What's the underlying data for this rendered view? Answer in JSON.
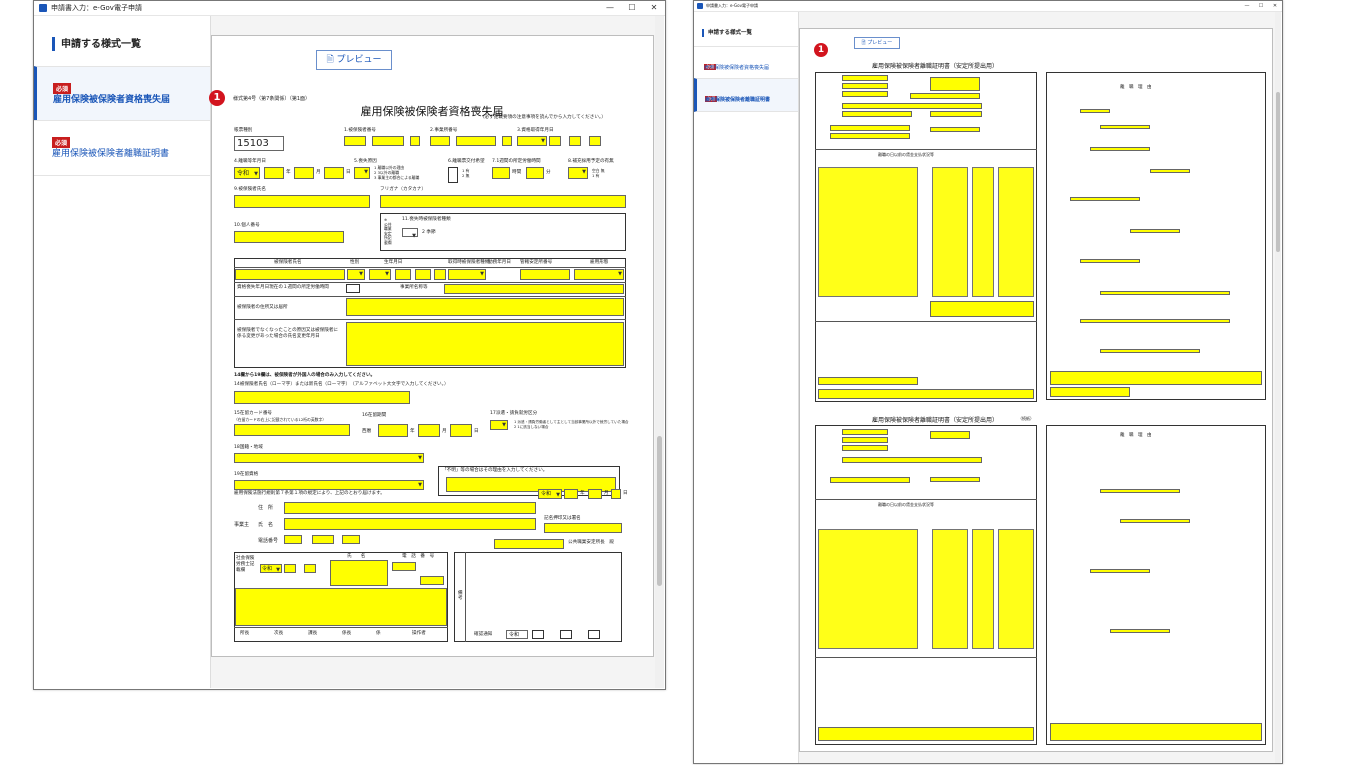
{
  "left_window": {
    "title": "申請書入力：e-Gov電子申請",
    "controls": {
      "minimize": "—",
      "maximize": "☐",
      "close": "✕"
    },
    "sidebar": {
      "header": "申請する様式一覧",
      "items": [
        {
          "badge": "必須",
          "label": "雇用保険被保険者資格喪失届",
          "active": true
        },
        {
          "badge": "必須",
          "label": "雇用保険被保険者離職証明書",
          "active": false
        }
      ]
    },
    "preview_label": "プレビュー",
    "marker": "1",
    "form": {
      "form_no": "様式第4号（第7条関係）（第1面）",
      "title": "雇用保険被保険者資格喪失届",
      "note": "（必ず記載要領の注意事項を読んでから入力してください。）",
      "labels": {
        "kind": "帳票種別",
        "insured_no": "1.被保険者番号",
        "office_no": "2.事業所番号",
        "acquired": "3.資格取得年月日",
        "lost_date": "4.離職等年月日",
        "reason": "5.喪失原因",
        "cert": "6.離職票交付希望",
        "hours": "7.1週間の所定労働時間",
        "replace": "8.補充採用予定の有無",
        "name": "9.被保険者氏名",
        "kana": "フリガナ（カタカナ）",
        "personal_no": "10.個人番号",
        "fixed_term": "11.喪失時被保険者種類",
        "changed_name": "被保険者氏名",
        "sex": "性別",
        "birth": "生年月日",
        "acq_kind": "取得時被保険者種類",
        "work_date": "勤務年月日",
        "pref_office": "管轄安定所番号",
        "employ": "雇用形態",
        "hours2": "資格喪失年月日現在の１週間の所定労働時間",
        "workplace": "事業所名称等",
        "address": "被保険者の住所又は居所",
        "other": "被保険者でなくなったことの原因又は被保険者に係る変更があった場合の氏名変更年月日",
        "foreign_head": "14欄から19欄は、被保険者が外国人の場合のみ入力してください。",
        "roman": "14被保険者氏名（ローマ字）または新氏名（ローマ字）　（アルファベット大文字で入力してください。）",
        "card": "15在留カード番号",
        "card_note": "（在留カードの右上に記載されている12桁の英数字）",
        "period": "16在留期間",
        "seireki": "西暦",
        "dispatch": "17派遣・請負就労区分",
        "nationality": "18国籍・地域",
        "status": "19在留資格",
        "reason_note": "「不明」等の場合はその理由を入力してください。",
        "declare": "雇用保険法施行規則第７条第１項の規定により、上記のとおり届けます。",
        "jusho": "住　所",
        "jigyonushi": "事業主",
        "shimei": "氏　名",
        "tel": "電話番号",
        "signature": "記名押印又は署名",
        "office_chief": "公共職業安定所長　殿",
        "sharoushi": "社会保険労務士記載欄",
        "s_name": "氏　　名",
        "s_tel": "電　話　番　号",
        "stamp_row": [
          "所長",
          "次長",
          "課長",
          "係長",
          "係",
          "操作者"
        ],
        "biko": "備考",
        "confirm": "確認通知"
      },
      "values": {
        "kind": "15103",
        "era": "令和",
        "era2": "令和",
        "era3": "令和",
        "era4": "令和",
        "year": "年",
        "month": "月",
        "day": "日",
        "reason_opts": "1 離職以外の理由\n2 3以外の離職\n3 事業主の都合による離職",
        "cert_opts": "1 有\n2 無",
        "replace_opts": "空白 無\n1 有",
        "hours_unit1": "時間",
        "hours_unit2": "分",
        "fixed_opt": "2 季節",
        "dispatch_opts": "1 派遣・請負労働者として主として当該事業所以外で就労していた場合\n2 1に該当しない場合",
        "fixed_labels": "※ 公共職業安定所記載欄"
      }
    }
  },
  "right_window": {
    "title": "申請書入力：e-Gov電子申請",
    "controls": {
      "minimize": "—",
      "maximize": "☐",
      "close": "✕"
    },
    "sidebar": {
      "header": "申請する様式一覧",
      "items": [
        {
          "badge": "必須",
          "label": "雇用保険被保険者資格喪失届",
          "active": false
        },
        {
          "badge": "必須",
          "label": "雇用保険被保険者離職証明書",
          "active": true
        }
      ]
    },
    "preview_label": "プレビュー",
    "marker": "1",
    "page1_title": "雇用保険被保険者離職証明書（安定所提出用）",
    "page2_title": "雇用保険被保険者離職証明書（安定所提出用）",
    "page2_sub": "（続紙）",
    "table_header": "離職の日以前の賃金支払状況等",
    "reason_title": "離　職　理　由"
  }
}
